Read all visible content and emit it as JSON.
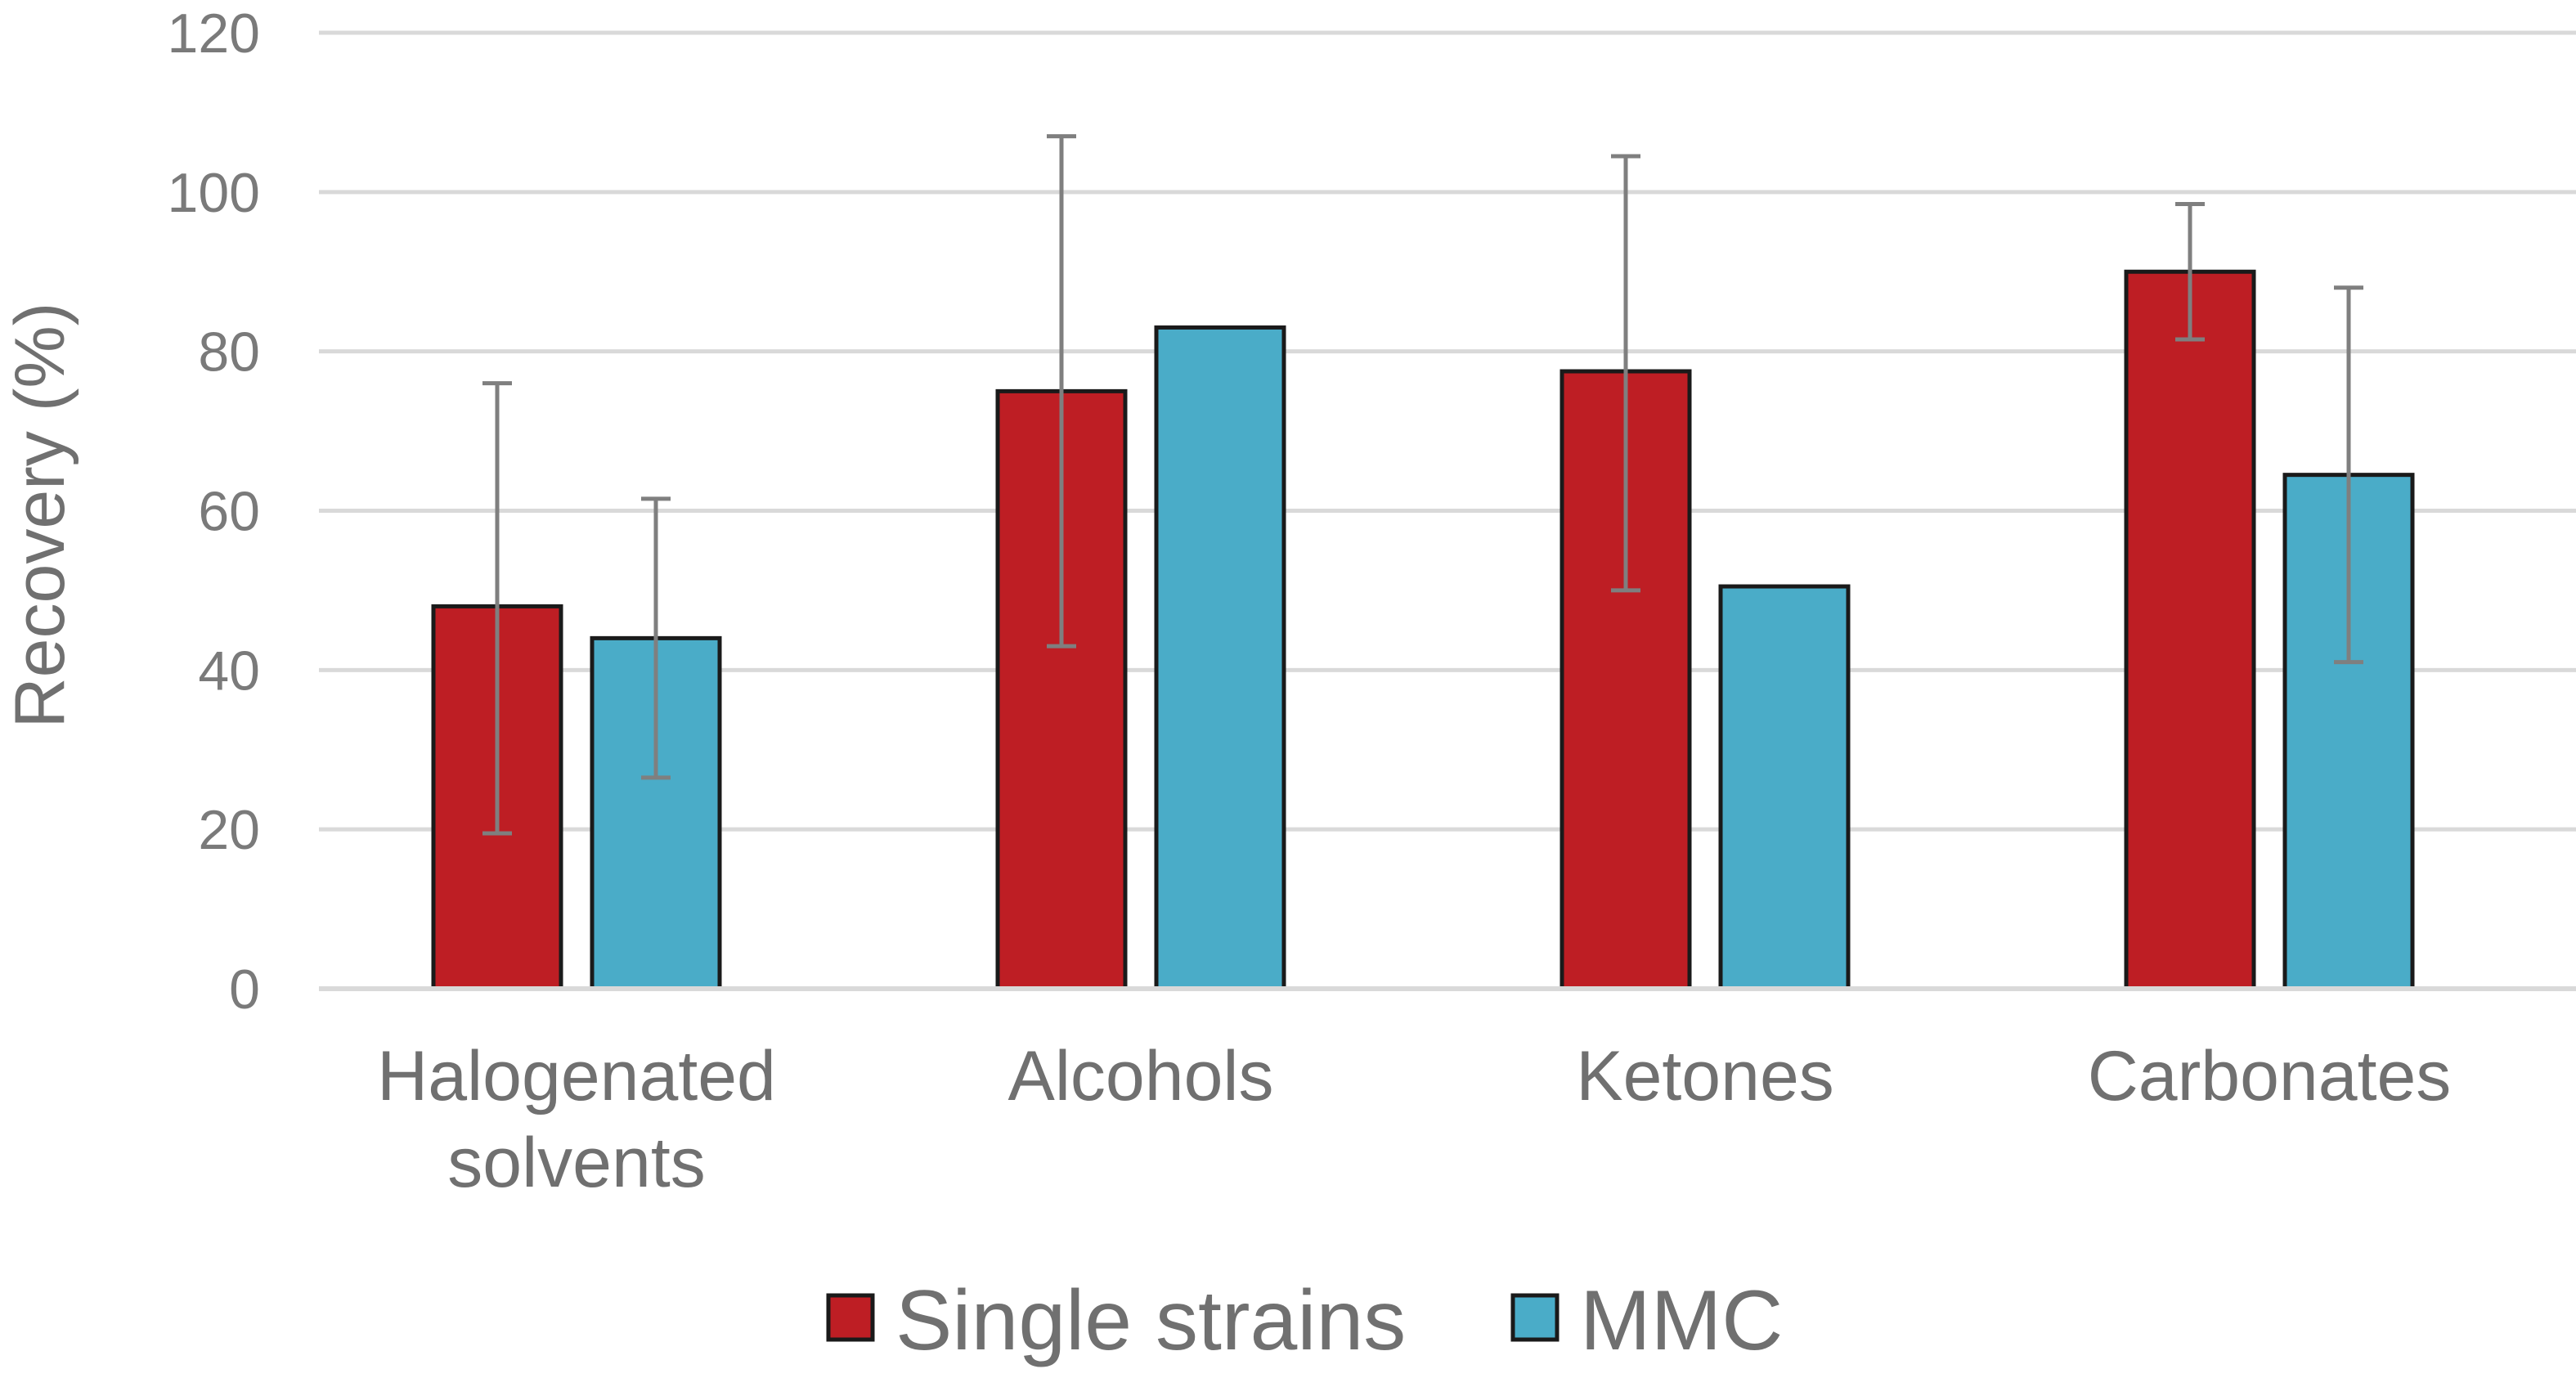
{
  "chart_data": {
    "type": "bar",
    "title": "",
    "xlabel": "",
    "ylabel": "Recovery (%)",
    "ylim": [
      0,
      120
    ],
    "yticks": [
      "0",
      "20",
      "40",
      "60",
      "80",
      "100",
      "120"
    ],
    "grid": true,
    "legend_position": "bottom",
    "categories": [
      [
        "Halogenated",
        "solvents"
      ],
      [
        "Alcohols"
      ],
      [
        "Ketones"
      ],
      [
        "Carbonates"
      ]
    ],
    "series": [
      {
        "name": "Single strains",
        "color": "#be1e24",
        "values": [
          48,
          75,
          77.5,
          90
        ],
        "error_low": [
          19.5,
          43,
          50,
          81.5
        ],
        "error_high": [
          76,
          107,
          104.5,
          98.5
        ]
      },
      {
        "name": "MMC",
        "color": "#4aacc8",
        "values": [
          44,
          83,
          50.5,
          64.5
        ],
        "error_low": [
          26.5,
          null,
          null,
          41
        ],
        "error_high": [
          61.5,
          null,
          null,
          88
        ]
      }
    ]
  }
}
